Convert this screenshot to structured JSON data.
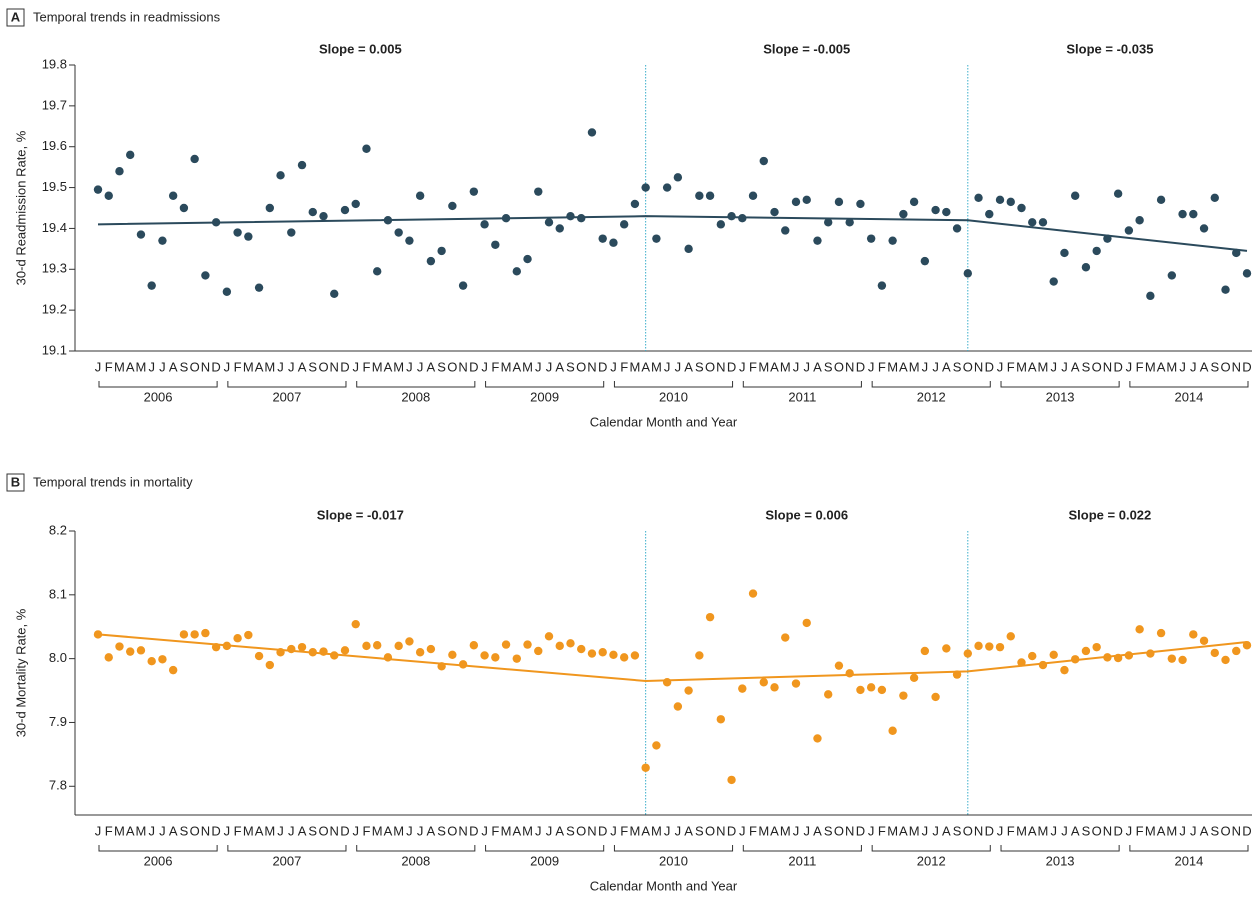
{
  "chart_data": [
    {
      "type": "scatter",
      "panel_label": "A",
      "title": "Temporal trends in readmissions",
      "ylabel": "30-d Readmission Rate, %",
      "xlabel": "Calendar Month and Year",
      "color": "#2b4a5c",
      "breakpoint_color": "#3aaecb",
      "categories": [
        "J",
        "F",
        "M",
        "A",
        "M",
        "J",
        "J",
        "A",
        "S",
        "O",
        "N",
        "D",
        "J",
        "F",
        "M",
        "A",
        "M",
        "J",
        "J",
        "A",
        "S",
        "O",
        "N",
        "D",
        "J",
        "F",
        "M",
        "A",
        "M",
        "J",
        "J",
        "A",
        "S",
        "O",
        "N",
        "D",
        "J",
        "F",
        "M",
        "A",
        "M",
        "J",
        "J",
        "A",
        "S",
        "O",
        "N",
        "D",
        "J",
        "F",
        "M",
        "A",
        "M",
        "J",
        "J",
        "A",
        "S",
        "O",
        "N",
        "D",
        "J",
        "F",
        "M",
        "A",
        "M",
        "J",
        "J",
        "A",
        "S",
        "O",
        "N",
        "D",
        "J",
        "F",
        "M",
        "A",
        "M",
        "J",
        "J",
        "A",
        "S",
        "O",
        "N",
        "D",
        "J",
        "F",
        "M",
        "A",
        "M",
        "J",
        "J",
        "A",
        "S",
        "O",
        "N",
        "D",
        "J",
        "F",
        "M",
        "A",
        "M",
        "J",
        "J",
        "A",
        "S",
        "O",
        "N",
        "D"
      ],
      "years": [
        "2006",
        "2007",
        "2008",
        "2009",
        "2010",
        "2011",
        "2012",
        "2013",
        "2014"
      ],
      "values": [
        19.495,
        19.48,
        19.54,
        19.58,
        19.385,
        19.26,
        19.37,
        19.48,
        19.45,
        19.57,
        19.285,
        19.415,
        19.245,
        19.39,
        19.38,
        19.255,
        19.45,
        19.53,
        19.39,
        19.555,
        19.44,
        19.43,
        19.24,
        19.445,
        19.46,
        19.595,
        19.295,
        19.42,
        19.39,
        19.37,
        19.48,
        19.32,
        19.345,
        19.455,
        19.26,
        19.49,
        19.41,
        19.36,
        19.425,
        19.295,
        19.325,
        19.49,
        19.415,
        19.4,
        19.43,
        19.425,
        19.635,
        19.375,
        19.365,
        19.41,
        19.46,
        19.5,
        19.375,
        19.5,
        19.525,
        19.35,
        19.48,
        19.48,
        19.41,
        19.43,
        19.425,
        19.48,
        19.565,
        19.44,
        19.395,
        19.465,
        19.47,
        19.37,
        19.415,
        19.465,
        19.415,
        19.46,
        19.375,
        19.26,
        19.37,
        19.435,
        19.465,
        19.32,
        19.445,
        19.44,
        19.4,
        19.29,
        19.475,
        19.435,
        19.47,
        19.465,
        19.45,
        19.415,
        19.415,
        19.27,
        19.34,
        19.48,
        19.305,
        19.345,
        19.375,
        19.485,
        19.395,
        19.42,
        19.235,
        19.47,
        19.285,
        19.435,
        19.435,
        19.4,
        19.475,
        19.25,
        19.34,
        19.29
      ],
      "trend": {
        "index": [
          0,
          51,
          81,
          107
        ],
        "values": [
          19.41,
          19.43,
          19.42,
          19.345
        ]
      },
      "breakpoints": [
        51,
        81
      ],
      "slope_labels": [
        "Slope = 0.005",
        "Slope = -0.005",
        "Slope = -0.035"
      ],
      "ylim": [
        19.1,
        19.8
      ],
      "yticks": [
        19.1,
        19.2,
        19.3,
        19.4,
        19.5,
        19.6,
        19.7,
        19.8
      ]
    },
    {
      "type": "scatter",
      "panel_label": "B",
      "title": "Temporal trends in mortality",
      "ylabel": "30-d Mortality Rate, %",
      "xlabel": "Calendar Month and Year",
      "color": "#f0961e",
      "breakpoint_color": "#3aaecb",
      "categories": [
        "J",
        "F",
        "M",
        "A",
        "M",
        "J",
        "J",
        "A",
        "S",
        "O",
        "N",
        "D",
        "J",
        "F",
        "M",
        "A",
        "M",
        "J",
        "J",
        "A",
        "S",
        "O",
        "N",
        "D",
        "J",
        "F",
        "M",
        "A",
        "M",
        "J",
        "J",
        "A",
        "S",
        "O",
        "N",
        "D",
        "J",
        "F",
        "M",
        "A",
        "M",
        "J",
        "J",
        "A",
        "S",
        "O",
        "N",
        "D",
        "J",
        "F",
        "M",
        "A",
        "M",
        "J",
        "J",
        "A",
        "S",
        "O",
        "N",
        "D",
        "J",
        "F",
        "M",
        "A",
        "M",
        "J",
        "J",
        "A",
        "S",
        "O",
        "N",
        "D",
        "J",
        "F",
        "M",
        "A",
        "M",
        "J",
        "J",
        "A",
        "S",
        "O",
        "N",
        "D",
        "J",
        "F",
        "M",
        "A",
        "M",
        "J",
        "J",
        "A",
        "S",
        "O",
        "N",
        "D",
        "J",
        "F",
        "M",
        "A",
        "M",
        "J",
        "J",
        "A",
        "S",
        "O",
        "N",
        "D"
      ],
      "years": [
        "2006",
        "2007",
        "2008",
        "2009",
        "2010",
        "2011",
        "2012",
        "2013",
        "2014"
      ],
      "values": [
        8.038,
        8.002,
        8.019,
        8.011,
        8.013,
        7.996,
        7.999,
        7.982,
        8.038,
        8.038,
        8.04,
        8.018,
        8.02,
        8.032,
        8.037,
        8.004,
        7.99,
        8.01,
        8.015,
        8.018,
        8.01,
        8.011,
        8.005,
        8.013,
        8.054,
        8.02,
        8.021,
        8.002,
        8.02,
        8.027,
        8.01,
        8.015,
        7.988,
        8.006,
        7.991,
        8.021,
        8.005,
        8.002,
        8.022,
        8.0,
        8.022,
        8.012,
        8.035,
        8.02,
        8.024,
        8.015,
        8.008,
        8.01,
        8.006,
        8.002,
        8.005,
        7.829,
        7.864,
        7.963,
        7.925,
        7.95,
        8.005,
        8.065,
        7.905,
        7.81,
        7.953,
        8.102,
        7.963,
        7.955,
        8.033,
        7.961,
        8.056,
        7.875,
        7.944,
        7.989,
        7.977,
        7.951,
        7.955,
        7.951,
        7.887,
        7.942,
        7.97,
        8.012,
        7.94,
        8.016,
        7.975,
        8.008,
        8.02,
        8.019,
        8.018,
        8.035,
        7.994,
        8.004,
        7.99,
        8.006,
        7.982,
        7.999,
        8.012,
        8.018,
        8.002,
        8.001,
        8.005,
        8.046,
        8.008,
        8.04,
        8.0,
        7.998,
        8.038,
        8.028,
        8.009,
        7.998,
        8.012,
        8.021
      ],
      "trend": {
        "index": [
          0,
          51,
          81,
          107
        ],
        "values": [
          8.038,
          7.965,
          7.98,
          8.026
        ]
      },
      "breakpoints": [
        51,
        81
      ],
      "slope_labels": [
        "Slope = -0.017",
        "Slope = 0.006",
        "Slope = 0.022"
      ],
      "ylim": [
        7.755,
        8.2
      ],
      "yticks": [
        7.8,
        7.9,
        {
          "value": 8,
          "label": "8.0"
        },
        8.1,
        8.2
      ]
    }
  ]
}
